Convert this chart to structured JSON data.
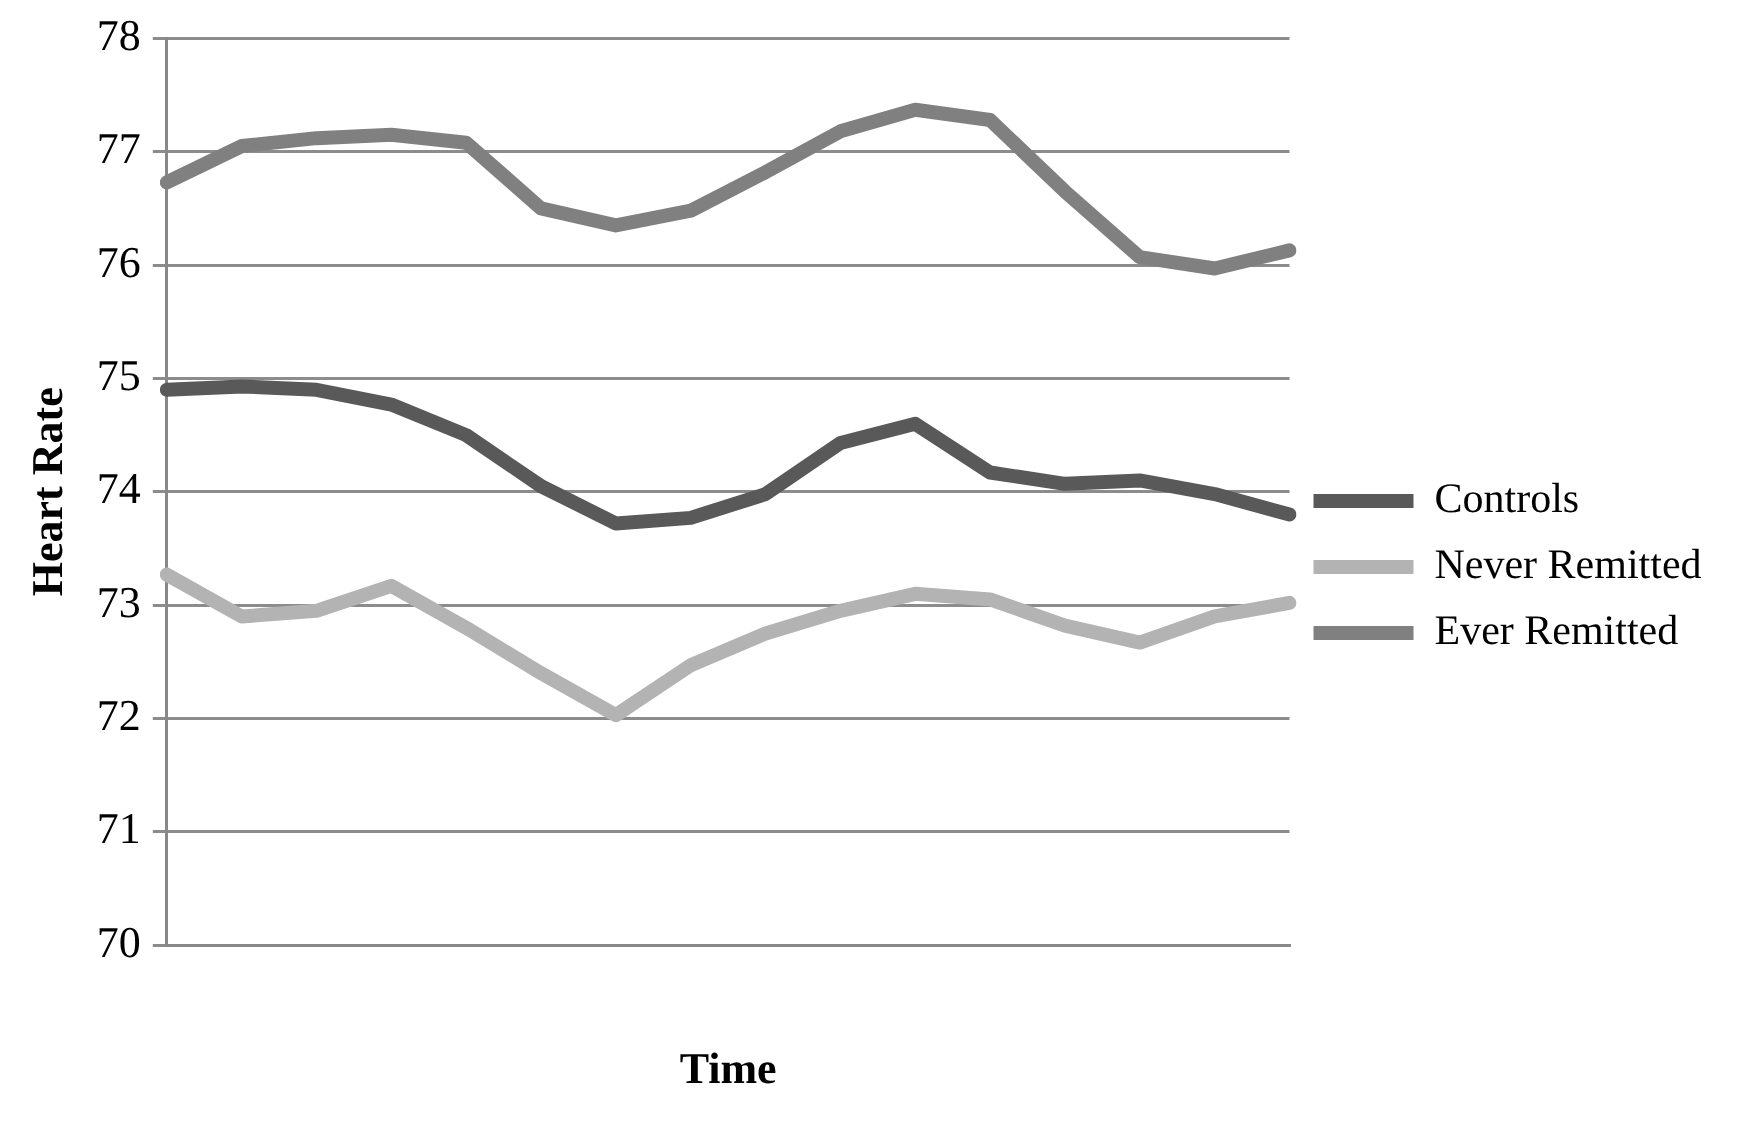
{
  "chart_data": {
    "type": "line",
    "xlabel": "Time",
    "ylabel": "Heart Rate",
    "categories": [
      null,
      null,
      null,
      null,
      null,
      null,
      null,
      null,
      null,
      null,
      null,
      null,
      null,
      null,
      null,
      null
    ],
    "series": [
      {
        "name": "Controls",
        "color": "#595959",
        "values": [
          74.9,
          74.93,
          74.9,
          74.77,
          74.5,
          74.05,
          73.72,
          73.77,
          73.98,
          74.43,
          74.6,
          74.17,
          74.07,
          74.1,
          73.98,
          73.8
        ]
      },
      {
        "name": "Never Remitted",
        "color": "#b3b3b3",
        "values": [
          73.27,
          72.9,
          72.95,
          73.17,
          72.8,
          72.4,
          72.03,
          72.47,
          72.75,
          72.95,
          73.1,
          73.05,
          72.82,
          72.67,
          72.9,
          73.02
        ]
      },
      {
        "name": "Ever Remitted",
        "color": "#808080",
        "values": [
          76.73,
          77.05,
          77.12,
          77.15,
          77.08,
          76.5,
          76.35,
          76.48,
          76.82,
          77.18,
          77.37,
          77.28,
          76.65,
          76.07,
          75.97,
          76.13
        ]
      }
    ],
    "ylim": [
      70,
      78
    ],
    "yticks": [
      70,
      71,
      72,
      73,
      74,
      75,
      76,
      77,
      78
    ],
    "grid": "y",
    "legend": "right",
    "marker": "none",
    "line_style": "solid"
  }
}
